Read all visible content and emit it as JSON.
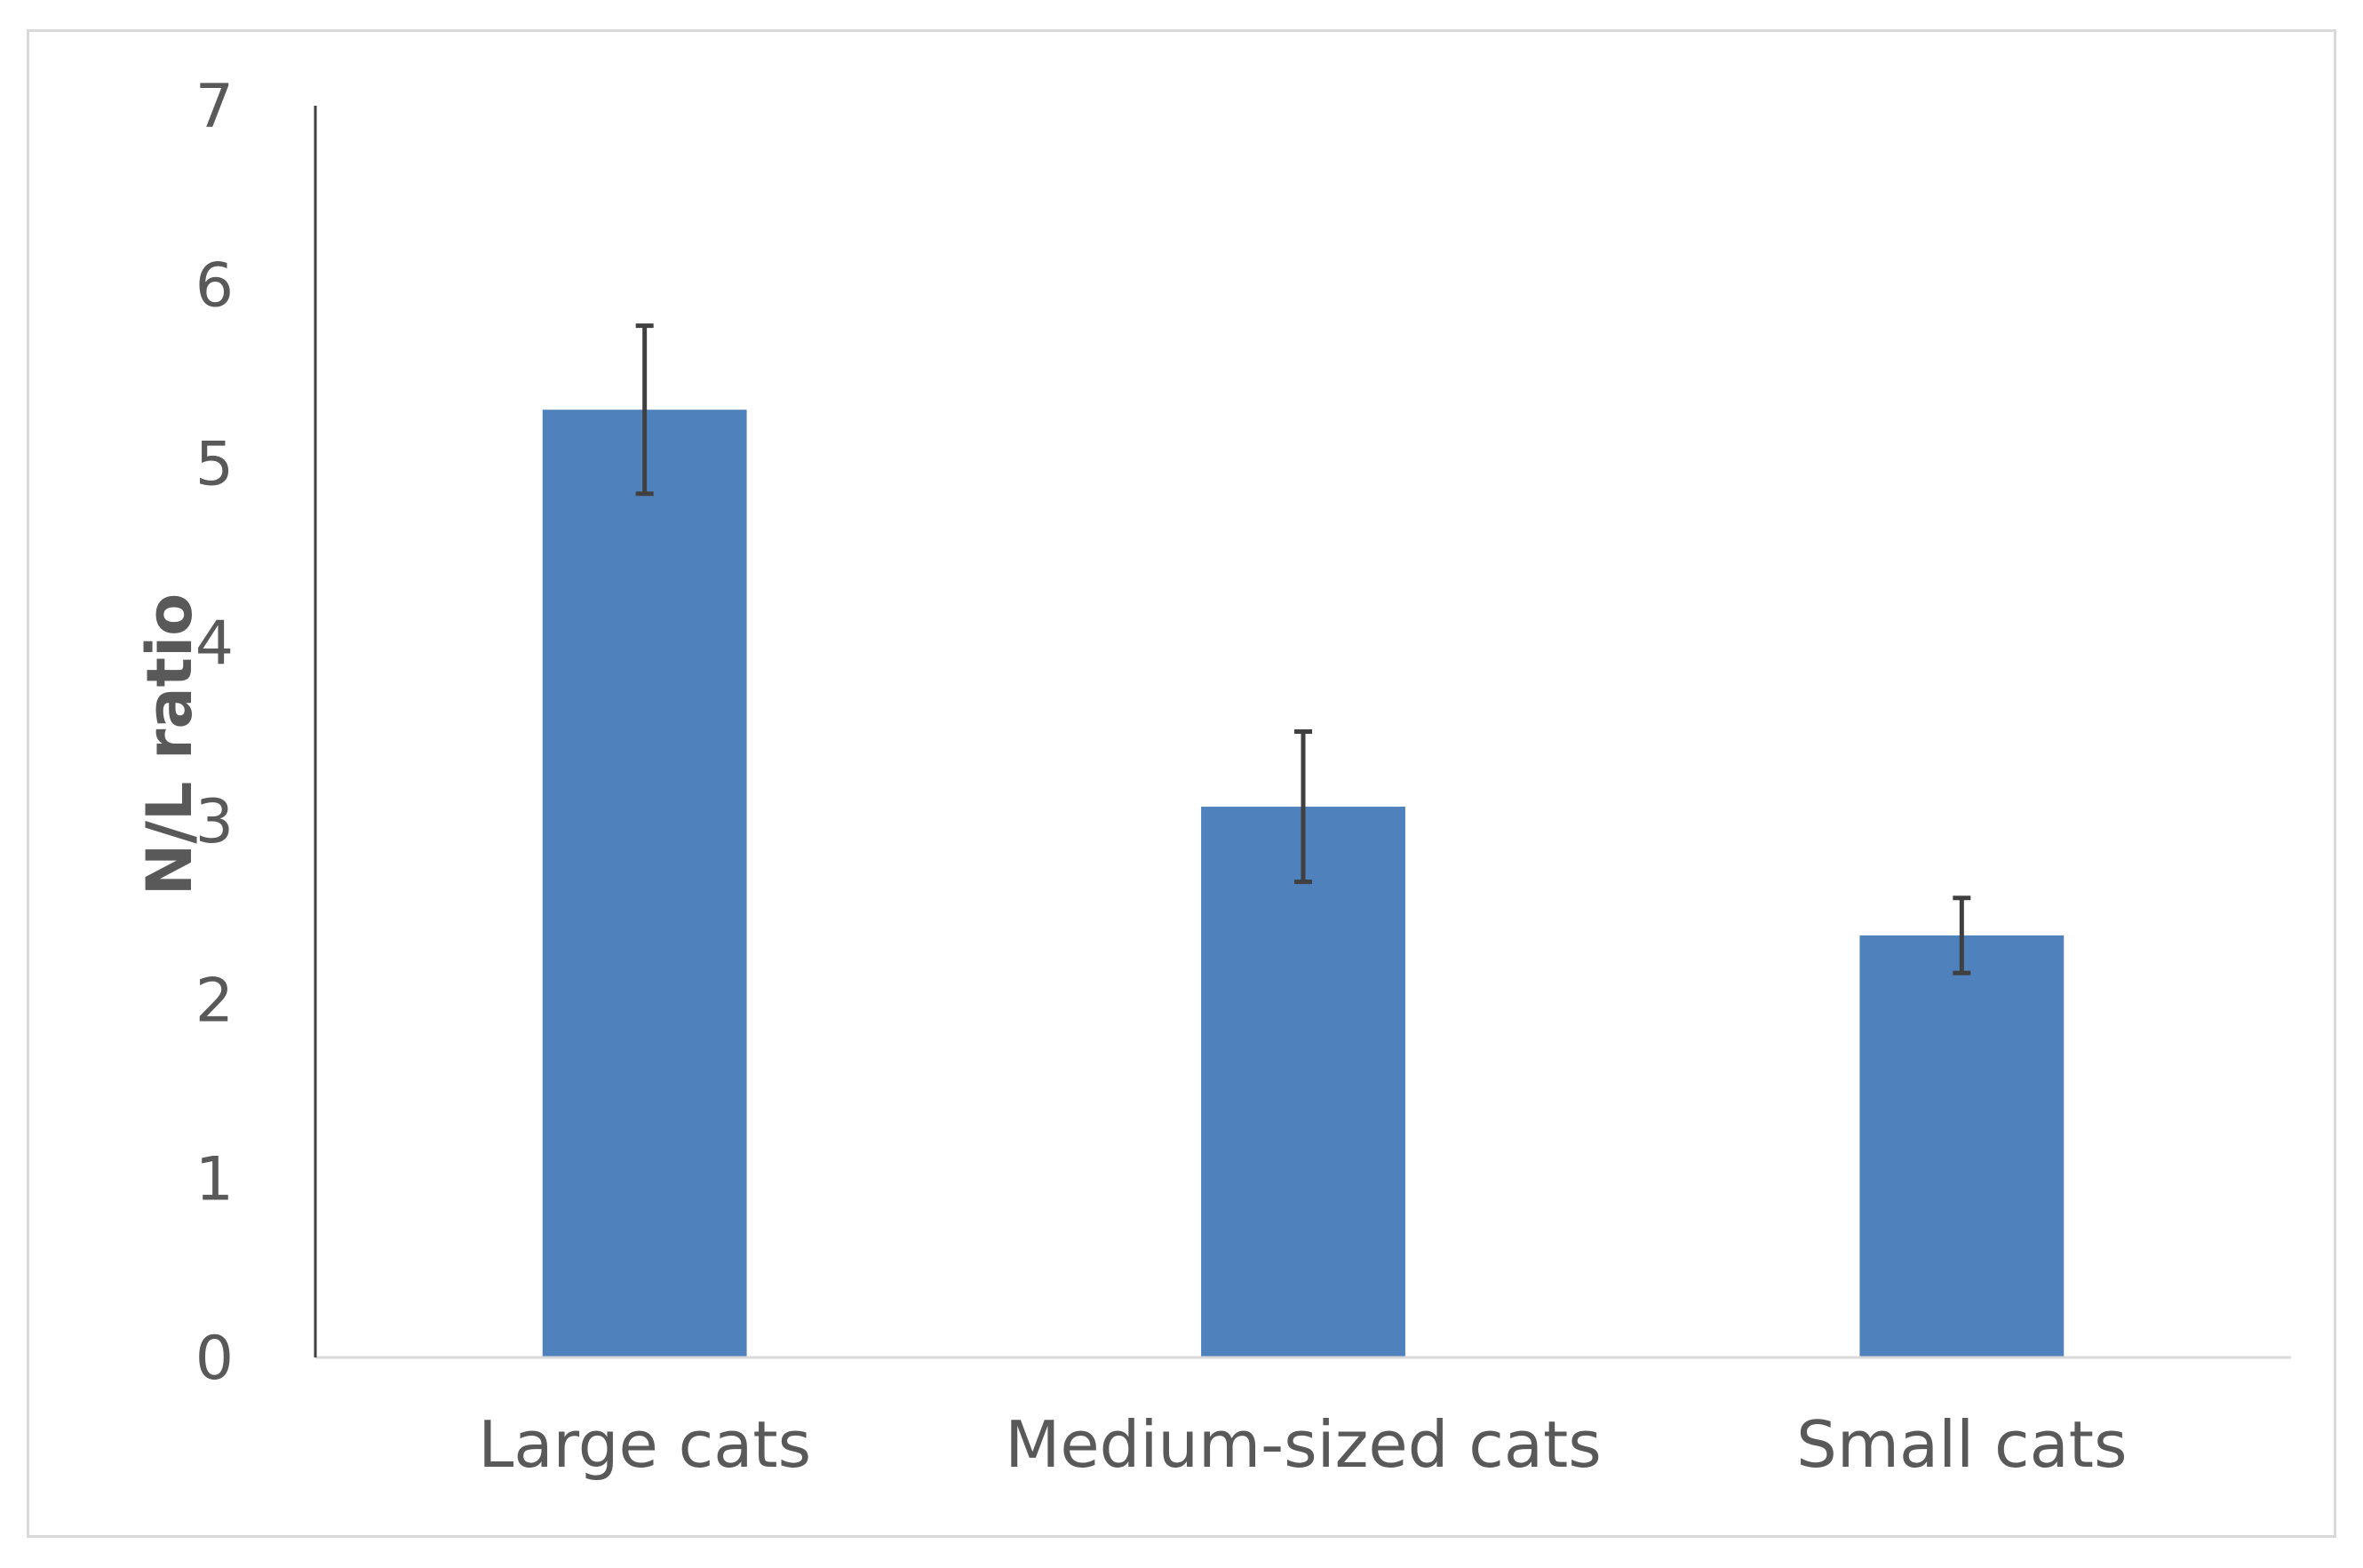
{
  "chart_data": {
    "type": "bar",
    "categories": [
      "Large cats",
      "Medium-sized cats",
      "Small cats"
    ],
    "series": [
      {
        "values": [
          5.3,
          3.08,
          2.36
        ],
        "error": [
          0.47,
          0.42,
          0.21
        ],
        "color": "#4f81bd"
      }
    ],
    "title": "",
    "xlabel": "",
    "ylabel": "N/L ratio",
    "ylim": [
      0,
      7
    ],
    "yticks": [
      0,
      1,
      2,
      3,
      4,
      5,
      6,
      7
    ],
    "grid": false,
    "legend": "none",
    "colors": {
      "bar": "#4f81bd",
      "error_bar": "#404040",
      "axis": "#d9d9d9",
      "axis_left": "#404040",
      "text": "#595959"
    }
  }
}
